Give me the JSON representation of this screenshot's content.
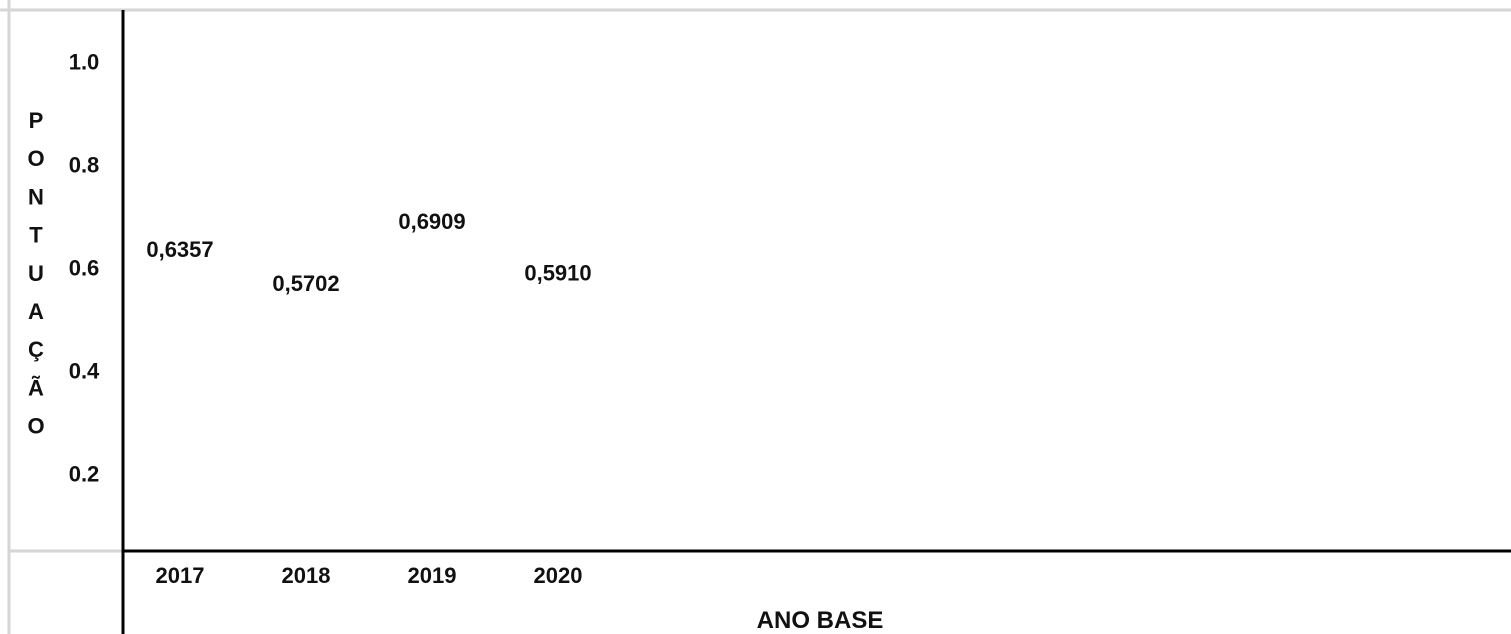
{
  "chart_data": {
    "type": "scatter",
    "categories": [
      "2017",
      "2018",
      "2019",
      "2020"
    ],
    "values": [
      0.6357,
      0.5702,
      0.6909,
      0.591
    ],
    "data_labels": [
      "0,6357",
      "0,5702",
      "0,6909",
      "0,5910"
    ],
    "ylabel": "PONTUAÇÃO",
    "ylabel_letters": [
      "P",
      "O",
      "N",
      "T",
      "U",
      "A",
      "Ç",
      "Ã",
      "O"
    ],
    "xlabel": "ANO BASE",
    "yticks": [
      "1.0",
      "0.8",
      "0.6",
      "0.4",
      "0.2"
    ],
    "ytick_values": [
      1.0,
      0.8,
      0.6,
      0.4,
      0.2
    ],
    "ylim": [
      0.05,
      1.1
    ],
    "grid": false,
    "colors": {
      "axis": "#000000",
      "frame": "#d6d6d6",
      "text": "#111111"
    }
  }
}
